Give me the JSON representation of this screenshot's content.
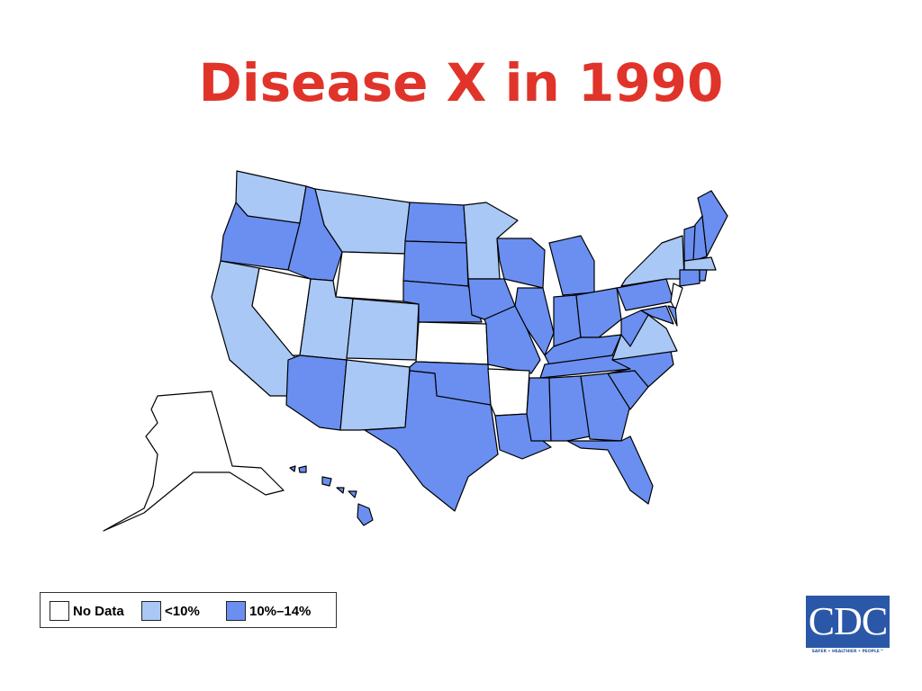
{
  "title": "Disease X in 1990",
  "legend": [
    {
      "label": "No Data",
      "color": "#ffffff"
    },
    {
      "label": "<10%",
      "color": "#a9c8f5"
    },
    {
      "label": "10%–14%",
      "color": "#6a8ff0"
    }
  ],
  "logo": {
    "text": "CDC",
    "tagline": "SAFER • HEALTHIER • PEOPLE™"
  }
}
